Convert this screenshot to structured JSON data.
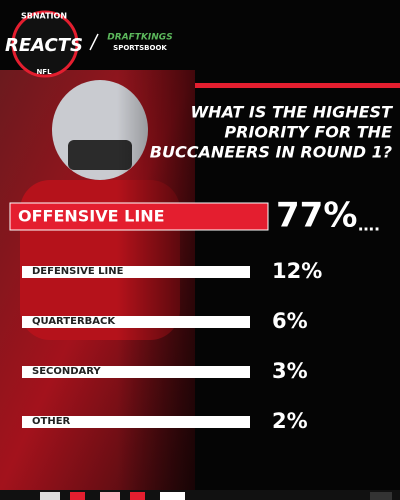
{
  "header": {
    "brand": "SBNATION",
    "logo": "REACTS",
    "league": "NFL",
    "partner": "DRAFTKINGS",
    "partner_sub": "SPORTSBOOK"
  },
  "poll": {
    "question_lines": [
      "WHAT IS THE HIGHEST",
      "PRIORITY FOR THE",
      "BUCCANEERS IN ROUND 1?"
    ],
    "options": [
      {
        "label": "OFFENSIVE LINE",
        "result": "77%"
      },
      {
        "label": "DEFENSIVE LINE",
        "result": "12%"
      },
      {
        "label": "QUARTERBACK",
        "result": "6%"
      },
      {
        "label": "SECONDARY",
        "result": "3%"
      },
      {
        "label": "OTHER",
        "result": "2%"
      }
    ]
  }
}
